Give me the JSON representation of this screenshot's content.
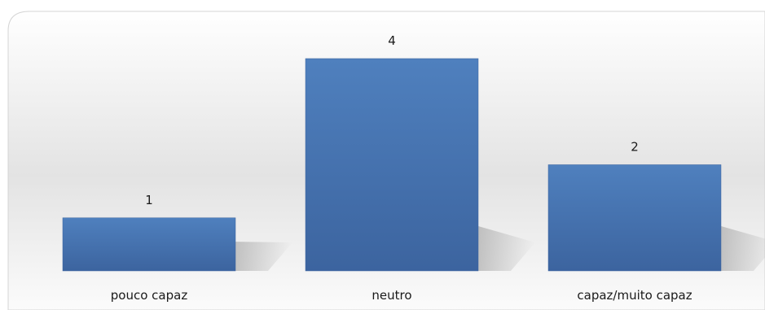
{
  "chart_data": {
    "type": "bar",
    "categories": [
      "pouco capaz",
      "neutro",
      "capaz/muito capaz"
    ],
    "values": [
      1,
      4,
      2
    ],
    "data_labels": [
      "1",
      "4",
      "2"
    ],
    "ylim": [
      0,
      4
    ],
    "grid": false,
    "legend": "none",
    "bar_color": "#4a7ab8",
    "bar_color_dark": "#3d65a0"
  }
}
